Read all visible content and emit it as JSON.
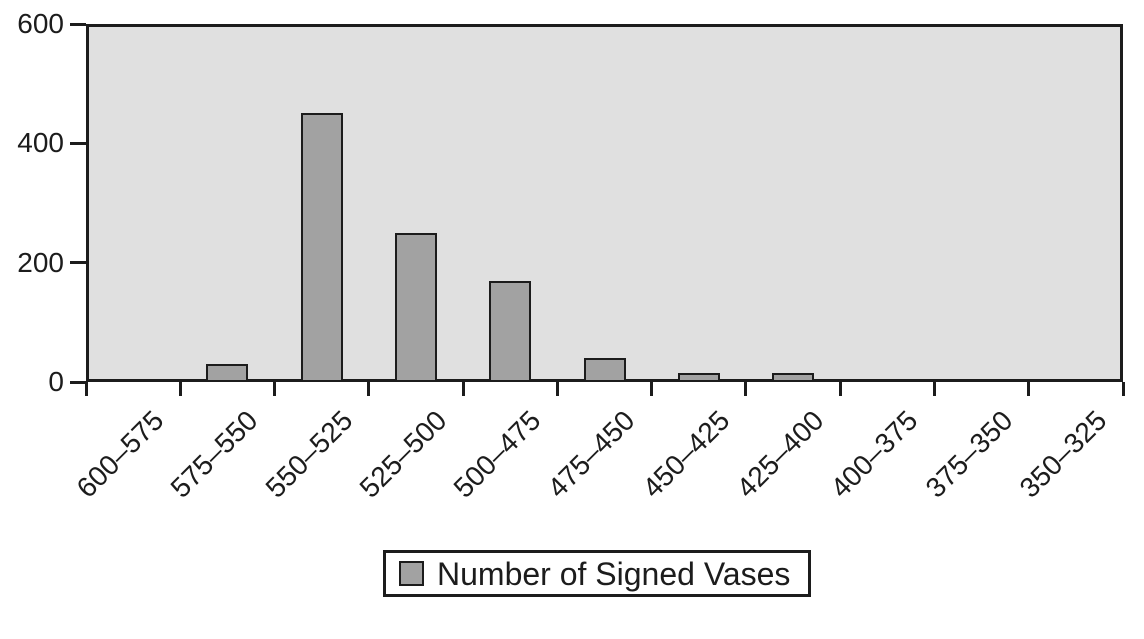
{
  "chart_data": {
    "type": "bar",
    "title": "",
    "xlabel": "",
    "ylabel": "",
    "categories": [
      "600–575",
      "575–550",
      "550–525",
      "525–500",
      "500–475",
      "475–450",
      "450–425",
      "425–400",
      "400–375",
      "375–350",
      "350–325"
    ],
    "values": [
      0,
      30,
      450,
      250,
      170,
      40,
      15,
      15,
      0,
      0,
      0
    ],
    "series_name": "Number of Signed Vases",
    "legend_label": "Number of Signed Vases",
    "legend_position": "bottom-center",
    "ylim": [
      0,
      600
    ],
    "yticks": [
      0,
      200,
      400,
      600
    ],
    "grid": false,
    "x_label_rotation_deg": -45,
    "colors": {
      "bar_fill": "#a2a2a2",
      "bar_border": "#1c1c1c",
      "plot_background": "#e0e0e0",
      "axis": "#1c1c1c",
      "page_background": "#ffffff",
      "text": "#1c1c1c"
    }
  }
}
